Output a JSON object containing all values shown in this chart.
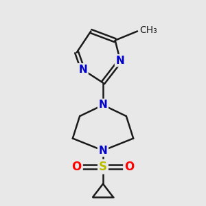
{
  "background_color": "#e8e8e8",
  "bond_color": "#1a1a1a",
  "N_color": "#0000cc",
  "S_color": "#bbbb00",
  "O_color": "#ff0000",
  "line_width": 1.8,
  "font_size": 11,
  "figsize": [
    3.0,
    3.0
  ],
  "dpi": 100,
  "xlim": [
    0,
    10
  ],
  "ylim": [
    0,
    10
  ]
}
